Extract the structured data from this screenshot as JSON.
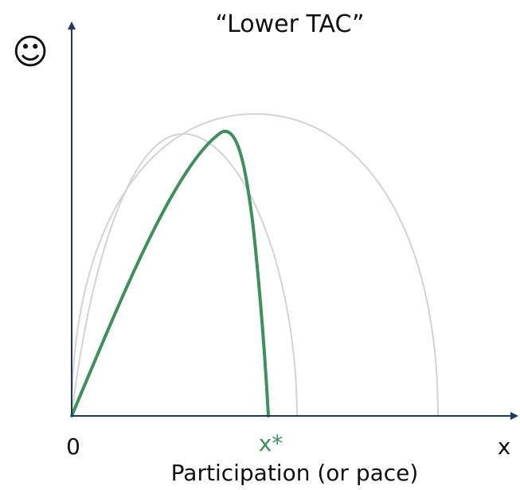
{
  "title": "“Lower TAC”",
  "y_axis_symbol": "☺",
  "x_axis_label": "Participation (or pace)",
  "x_origin_label": "0",
  "x_end_label": "x",
  "optimum_label": "x*",
  "colors": {
    "axis": "#1f3864",
    "highlight": "#3f8f5a",
    "reference": "#d3d3d3",
    "text": "#111111"
  }
}
